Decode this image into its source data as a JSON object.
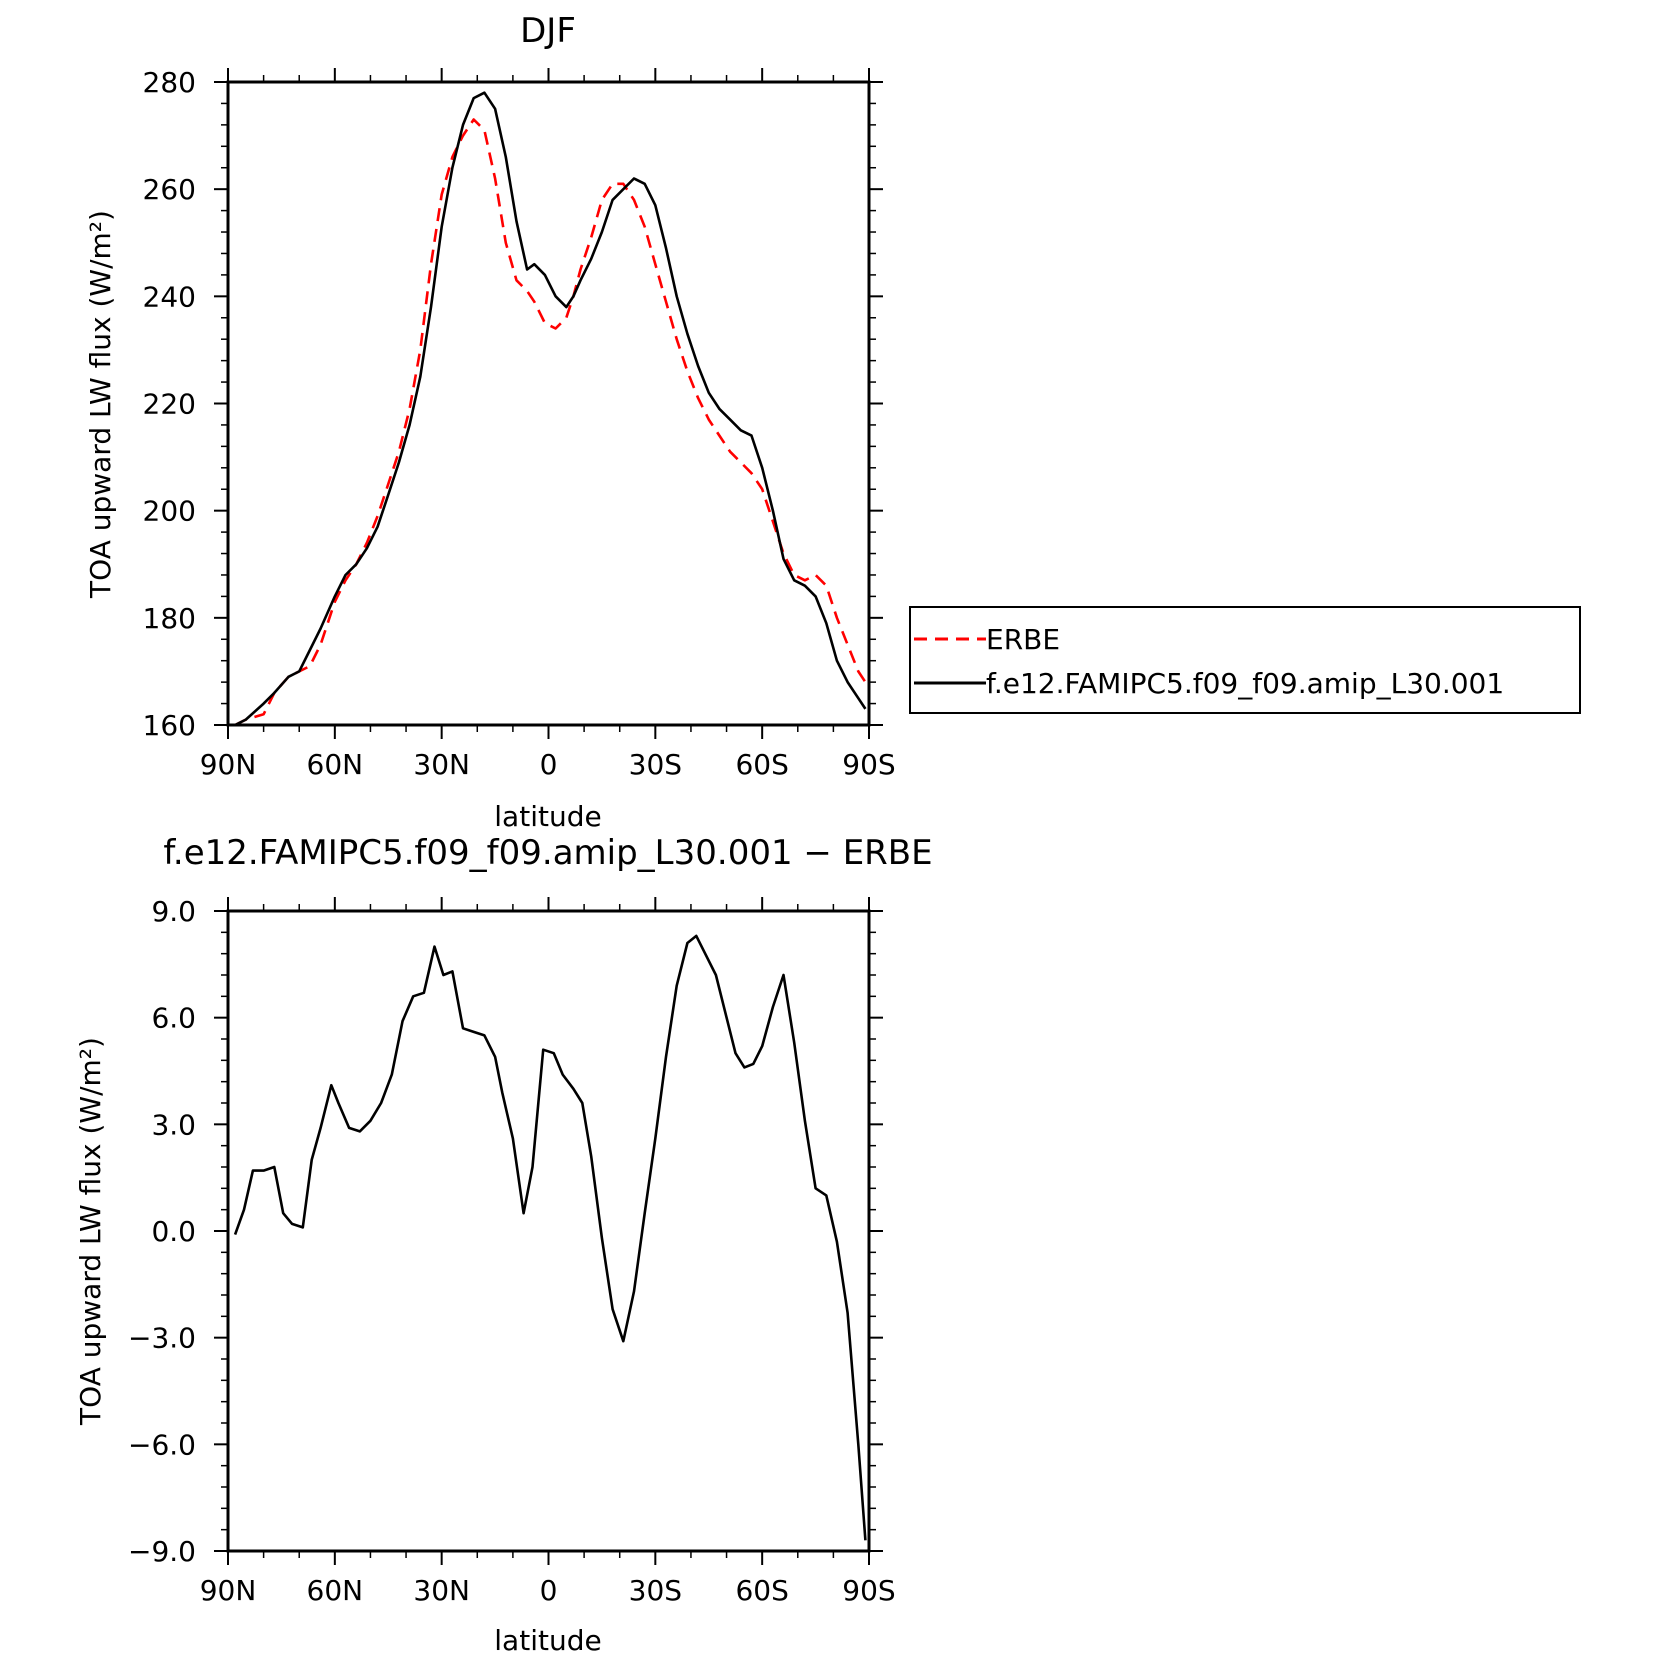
{
  "chart_data": [
    {
      "type": "line",
      "title": "DJF",
      "xlabel": "latitude",
      "ylabel": "TOA upward LW flux (W/m²)",
      "xlim": [
        -90,
        90
      ],
      "ylim": [
        160,
        280
      ],
      "x_ticks": [
        -90,
        -60,
        -30,
        0,
        30,
        60,
        90
      ],
      "x_tick_labels": [
        "90N",
        "60N",
        "30N",
        "0",
        "30S",
        "60S",
        "90S"
      ],
      "y_ticks": [
        160,
        180,
        200,
        220,
        240,
        260,
        280
      ],
      "y_tick_labels": [
        "160",
        "180",
        "200",
        "220",
        "240",
        "260",
        "280"
      ],
      "legend_position": "right",
      "series": [
        {
          "name": "ERBE",
          "color": "#ff0000",
          "dash": "dashed",
          "x": [
            -88,
            -85,
            -80,
            -77,
            -73,
            -70,
            -67,
            -64,
            -60,
            -57,
            -54,
            -51,
            -48,
            -45,
            -42,
            -39,
            -36,
            -33,
            -30,
            -27,
            -24,
            -21,
            -18,
            -15,
            -12,
            -9,
            -6,
            -4,
            -1,
            2,
            5,
            7,
            9,
            12,
            15,
            18,
            21,
            24,
            27,
            30,
            33,
            36,
            39,
            42,
            45,
            48,
            51,
            54,
            57,
            60,
            63,
            66,
            69,
            72,
            75,
            78,
            81,
            84,
            87,
            89
          ],
          "values": [
            160,
            161,
            162,
            166,
            169,
            170,
            171,
            175,
            183,
            187,
            190,
            194,
            199,
            205,
            211,
            219,
            230,
            246,
            259,
            266,
            270,
            273,
            271,
            262,
            250,
            243,
            241,
            239,
            235,
            234,
            236,
            240,
            245,
            251,
            258,
            261,
            261,
            258,
            253,
            246,
            239,
            232,
            226,
            221,
            217,
            214,
            211,
            209,
            207,
            204,
            198,
            192,
            188,
            187,
            188,
            186,
            180,
            175,
            170,
            168
          ]
        },
        {
          "name": "f.e12.FAMIPC5.f09_f09.amip_L30.001",
          "color": "#000000",
          "dash": "solid",
          "x": [
            -88,
            -85,
            -80,
            -77,
            -73,
            -70,
            -67,
            -64,
            -60,
            -57,
            -54,
            -51,
            -48,
            -45,
            -42,
            -39,
            -36,
            -33,
            -30,
            -27,
            -24,
            -21,
            -18,
            -15,
            -12,
            -9,
            -6,
            -4,
            -1,
            2,
            5,
            7,
            9,
            12,
            15,
            18,
            21,
            24,
            27,
            30,
            33,
            36,
            39,
            42,
            45,
            48,
            51,
            54,
            57,
            60,
            63,
            66,
            69,
            72,
            75,
            78,
            81,
            84,
            87,
            89
          ],
          "values": [
            160,
            161,
            164,
            166,
            169,
            170,
            174,
            178,
            184,
            188,
            190,
            193,
            197,
            203,
            209,
            216,
            225,
            238,
            253,
            264,
            272,
            277,
            278,
            275,
            266,
            254,
            245,
            246,
            244,
            240,
            238,
            240,
            243,
            247,
            252,
            258,
            260,
            262,
            261,
            257,
            249,
            240,
            233,
            227,
            222,
            219,
            217,
            215,
            214,
            208,
            200,
            191,
            187,
            186,
            184,
            179,
            172,
            168,
            165,
            163
          ]
        }
      ]
    },
    {
      "type": "line",
      "title": "f.e12.FAMIPC5.f09_f09.amip_L30.001 − ERBE",
      "xlabel": "latitude",
      "ylabel": "TOA upward LW flux (W/m²)",
      "xlim": [
        -90,
        90
      ],
      "ylim": [
        -9,
        9
      ],
      "x_ticks": [
        -90,
        -60,
        -30,
        0,
        30,
        60,
        90
      ],
      "x_tick_labels": [
        "90N",
        "60N",
        "30N",
        "0",
        "30S",
        "60S",
        "90S"
      ],
      "y_ticks": [
        -9,
        -6,
        -3,
        0,
        3,
        6,
        9
      ],
      "y_tick_labels": [
        "−9.0",
        "−6.0",
        "−3.0",
        "0.0",
        "3.0",
        "6.0",
        "9.0"
      ],
      "series": [
        {
          "color": "#000000",
          "dash": "solid",
          "x": [
            -88,
            -85.5,
            -83,
            -80,
            -77,
            -74.5,
            -72,
            -69,
            -66.5,
            -64,
            -61,
            -59,
            -56,
            -53,
            -50,
            -47,
            -44,
            -41,
            -38,
            -35,
            -32,
            -29.5,
            -27,
            -24,
            -21,
            -18,
            -15,
            -13,
            -10,
            -7,
            -4.5,
            -1.5,
            1.5,
            4,
            7,
            9.5,
            12,
            15,
            18,
            21,
            24,
            27,
            30,
            33,
            36,
            39,
            41.5,
            44,
            47,
            50,
            52.5,
            55,
            57.5,
            60,
            63,
            66,
            69,
            72,
            75,
            78,
            81,
            84,
            87,
            89
          ],
          "values": [
            -0.1,
            0.6,
            1.7,
            1.7,
            1.8,
            0.5,
            0.2,
            0.1,
            2.0,
            2.9,
            4.1,
            3.6,
            2.9,
            2.8,
            3.1,
            3.6,
            4.4,
            5.9,
            6.6,
            6.7,
            8.0,
            7.2,
            7.3,
            5.7,
            5.6,
            5.5,
            4.9,
            3.9,
            2.6,
            0.5,
            1.8,
            5.1,
            5.0,
            4.4,
            4.0,
            3.6,
            2.1,
            -0.2,
            -2.2,
            -3.1,
            -1.7,
            0.5,
            2.6,
            4.9,
            6.9,
            8.1,
            8.3,
            7.8,
            7.2,
            6.0,
            5.0,
            4.6,
            4.7,
            5.2,
            6.3,
            7.2,
            5.3,
            3.1,
            1.2,
            1.0,
            -0.3,
            -2.3,
            -6.0,
            -8.7
          ]
        }
      ]
    }
  ]
}
